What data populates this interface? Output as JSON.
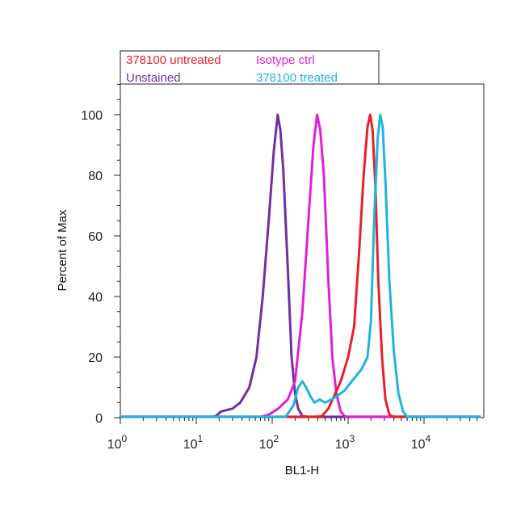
{
  "chart_data": {
    "type": "line",
    "xlabel": "BL1-H",
    "ylabel": "Percent of Max",
    "x_scale": "log",
    "xlim": [
      1,
      60000
    ],
    "ylim": [
      0,
      110
    ],
    "x_ticks": [
      {
        "value": 1,
        "base": "10",
        "exp": "0"
      },
      {
        "value": 10,
        "base": "10",
        "exp": "1"
      },
      {
        "value": 100,
        "base": "10",
        "exp": "2"
      },
      {
        "value": 1000,
        "base": "10",
        "exp": "3"
      },
      {
        "value": 10000,
        "base": "10",
        "exp": "4"
      }
    ],
    "y_ticks": [
      0,
      20,
      40,
      60,
      80,
      100
    ],
    "grid": false,
    "legend_position": "top-left, above plot",
    "legend": [
      {
        "label": "378100 untreated",
        "color": "#e8202a"
      },
      {
        "label": "Isotype ctrl",
        "color": "#e020d8"
      },
      {
        "label": "Unstained",
        "color": "#7030a0"
      },
      {
        "label": "378100 treated",
        "color": "#1fb4e0"
      }
    ],
    "series": [
      {
        "name": "Unstained",
        "color": "#7030a0",
        "points": [
          [
            1,
            0.3
          ],
          [
            15,
            0.3
          ],
          [
            18,
            0.5
          ],
          [
            21,
            2
          ],
          [
            25,
            2.5
          ],
          [
            30,
            3
          ],
          [
            38,
            5
          ],
          [
            50,
            10
          ],
          [
            62,
            20
          ],
          [
            75,
            40
          ],
          [
            90,
            65
          ],
          [
            105,
            88
          ],
          [
            118,
            100
          ],
          [
            128,
            95
          ],
          [
            140,
            82
          ],
          [
            160,
            50
          ],
          [
            180,
            20
          ],
          [
            200,
            8
          ],
          [
            220,
            3
          ],
          [
            250,
            0.5
          ],
          [
            300,
            0.3
          ],
          [
            60000,
            0.3
          ]
        ]
      },
      {
        "name": "Isotype ctrl",
        "color": "#e020d8",
        "points": [
          [
            1,
            0.3
          ],
          [
            70,
            0.3
          ],
          [
            90,
            1
          ],
          [
            120,
            3
          ],
          [
            160,
            6
          ],
          [
            200,
            12
          ],
          [
            250,
            35
          ],
          [
            300,
            65
          ],
          [
            350,
            90
          ],
          [
            390,
            100
          ],
          [
            430,
            95
          ],
          [
            480,
            80
          ],
          [
            550,
            45
          ],
          [
            620,
            20
          ],
          [
            700,
            8
          ],
          [
            800,
            2
          ],
          [
            900,
            0.5
          ],
          [
            1000,
            0.3
          ],
          [
            60000,
            0.3
          ]
        ]
      },
      {
        "name": "378100 untreated",
        "color": "#e8202a",
        "points": [
          [
            1,
            0.3
          ],
          [
            350,
            0.3
          ],
          [
            450,
            0.5
          ],
          [
            550,
            3
          ],
          [
            650,
            7
          ],
          [
            800,
            12
          ],
          [
            1000,
            20
          ],
          [
            1200,
            30
          ],
          [
            1400,
            55
          ],
          [
            1600,
            80
          ],
          [
            1800,
            96
          ],
          [
            1950,
            100
          ],
          [
            2100,
            95
          ],
          [
            2300,
            75
          ],
          [
            2500,
            45
          ],
          [
            2800,
            20
          ],
          [
            3100,
            6
          ],
          [
            3500,
            1
          ],
          [
            4000,
            0.3
          ],
          [
            60000,
            0.3
          ]
        ]
      },
      {
        "name": "378100 treated",
        "color": "#1fb4e0",
        "points": [
          [
            1,
            0.3
          ],
          [
            150,
            0.3
          ],
          [
            190,
            4
          ],
          [
            220,
            10
          ],
          [
            250,
            12
          ],
          [
            280,
            10
          ],
          [
            320,
            7
          ],
          [
            360,
            5
          ],
          [
            420,
            6
          ],
          [
            500,
            5
          ],
          [
            600,
            6
          ],
          [
            700,
            7
          ],
          [
            900,
            9
          ],
          [
            1200,
            13
          ],
          [
            1500,
            16
          ],
          [
            1800,
            20
          ],
          [
            2000,
            32
          ],
          [
            2200,
            65
          ],
          [
            2450,
            92
          ],
          [
            2650,
            100
          ],
          [
            2850,
            96
          ],
          [
            3100,
            78
          ],
          [
            3500,
            45
          ],
          [
            4000,
            22
          ],
          [
            4600,
            8
          ],
          [
            5300,
            2
          ],
          [
            6000,
            0.3
          ],
          [
            60000,
            0.3
          ]
        ]
      }
    ]
  }
}
